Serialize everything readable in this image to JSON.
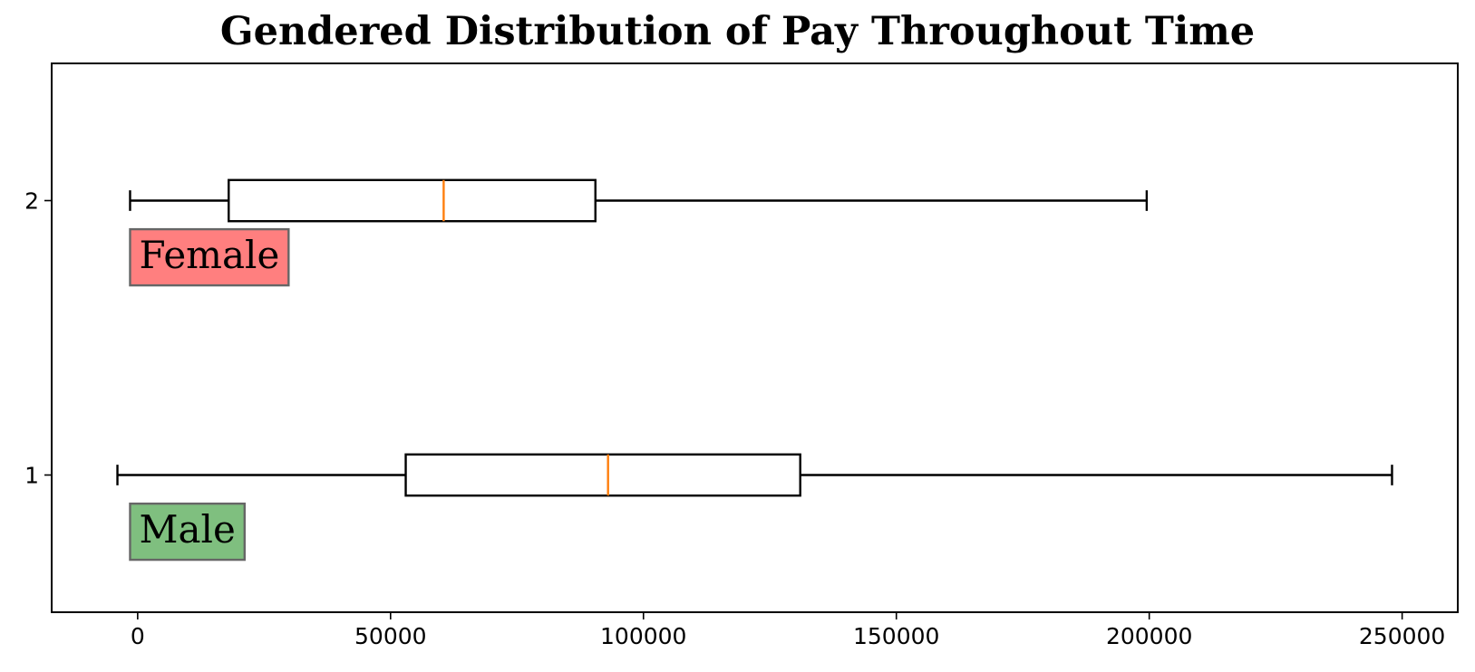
{
  "chart_data": {
    "type": "boxplot",
    "orientation": "horizontal",
    "title": "Gendered Distribution of Pay Throughout Time",
    "xlabel": "",
    "ylabel": "",
    "xlim": [
      -17000,
      261000
    ],
    "ylim": [
      0.5,
      2.5
    ],
    "xticks": [
      0,
      50000,
      100000,
      150000,
      200000,
      250000
    ],
    "xtick_labels": [
      "0",
      "50000",
      "100000",
      "150000",
      "200000",
      "250000"
    ],
    "yticks": [
      1,
      2
    ],
    "ytick_labels": [
      "1",
      "2"
    ],
    "grid": false,
    "series": [
      {
        "position": 1,
        "whisker_low": -4000,
        "q1": 53000,
        "median": 93000,
        "q3": 131000,
        "whisker_high": 248000
      },
      {
        "position": 2,
        "whisker_low": -1500,
        "q1": 18000,
        "median": 60500,
        "q3": 90500,
        "whisker_high": 199500
      }
    ],
    "annotations": [
      {
        "text": "Female",
        "x": -1500,
        "y": 1.8,
        "box_color": "#ff7f7f"
      },
      {
        "text": "Male",
        "x": -1500,
        "y": 0.8,
        "box_color": "#7fbf7f"
      }
    ],
    "colors": {
      "median": "#ff7f0e",
      "box_edge": "#000000"
    }
  }
}
